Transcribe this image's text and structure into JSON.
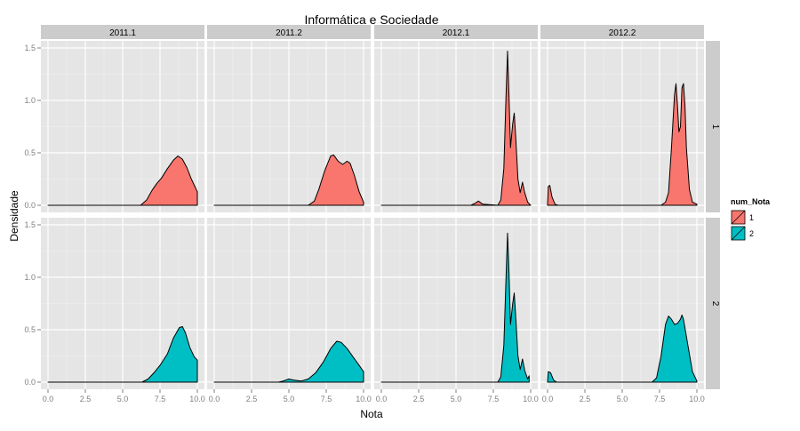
{
  "chart_data": {
    "type": "area",
    "title": "Informática e Sociedade",
    "xlabel": "Nota",
    "ylabel": "Densidade",
    "xlim": [
      0,
      10
    ],
    "ylim": [
      0,
      1.5
    ],
    "x_ticks": [
      "0.0",
      "2.5",
      "5.0",
      "7.5",
      "10.0"
    ],
    "y_ticks": [
      "0.0",
      "0.5",
      "1.0",
      "1.5"
    ],
    "column_facets": [
      "2011.1",
      "2011.2",
      "2012.1",
      "2012.2"
    ],
    "row_facets": [
      "1",
      "2"
    ],
    "legend": {
      "title": "num_Nota",
      "placement": "right",
      "entries": [
        {
          "label": "1",
          "color": "#F8766D"
        },
        {
          "label": "2",
          "color": "#00BFC4"
        }
      ]
    },
    "grid": true,
    "panels": [
      {
        "column": "2011.1",
        "row": "1",
        "xmax": 10.0,
        "points": [
          [
            0,
            0
          ],
          [
            6.2,
            0
          ],
          [
            6.6,
            0.05
          ],
          [
            7.0,
            0.15
          ],
          [
            7.3,
            0.21
          ],
          [
            7.6,
            0.26
          ],
          [
            8.0,
            0.35
          ],
          [
            8.4,
            0.43
          ],
          [
            8.7,
            0.47
          ],
          [
            9.0,
            0.44
          ],
          [
            9.3,
            0.36
          ],
          [
            9.6,
            0.25
          ],
          [
            10.0,
            0.13
          ],
          [
            10.0,
            0
          ]
        ]
      },
      {
        "column": "2011.2",
        "row": "1",
        "xmax": 10.0,
        "points": [
          [
            0,
            0
          ],
          [
            6.3,
            0
          ],
          [
            6.7,
            0.04
          ],
          [
            7.0,
            0.15
          ],
          [
            7.4,
            0.33
          ],
          [
            7.8,
            0.47
          ],
          [
            8.0,
            0.48
          ],
          [
            8.3,
            0.42
          ],
          [
            8.6,
            0.39
          ],
          [
            8.9,
            0.42
          ],
          [
            9.1,
            0.4
          ],
          [
            9.4,
            0.28
          ],
          [
            9.7,
            0.13
          ],
          [
            10.0,
            0.03
          ],
          [
            10.0,
            0
          ]
        ]
      },
      {
        "column": "2012.1",
        "row": "1",
        "xmax": 10.0,
        "points": [
          [
            0,
            0
          ],
          [
            6.0,
            0
          ],
          [
            6.3,
            0.02
          ],
          [
            6.5,
            0.04
          ],
          [
            6.8,
            0.01
          ],
          [
            7.8,
            0
          ],
          [
            8.0,
            0.05
          ],
          [
            8.2,
            0.35
          ],
          [
            8.35,
            1.05
          ],
          [
            8.45,
            1.47
          ],
          [
            8.55,
            1.05
          ],
          [
            8.65,
            0.55
          ],
          [
            8.8,
            0.78
          ],
          [
            8.9,
            0.88
          ],
          [
            9.0,
            0.65
          ],
          [
            9.15,
            0.25
          ],
          [
            9.3,
            0.12
          ],
          [
            9.45,
            0.22
          ],
          [
            9.6,
            0.12
          ],
          [
            9.8,
            0.03
          ],
          [
            10.0,
            0
          ],
          [
            10.0,
            0
          ]
        ]
      },
      {
        "column": "2012.2",
        "row": "1",
        "xmax": 10.0,
        "points": [
          [
            0,
            0
          ],
          [
            0.05,
            0.18
          ],
          [
            0.15,
            0.19
          ],
          [
            0.3,
            0.08
          ],
          [
            0.5,
            0.01
          ],
          [
            0.7,
            0
          ],
          [
            7.6,
            0
          ],
          [
            7.9,
            0.03
          ],
          [
            8.1,
            0.12
          ],
          [
            8.3,
            0.55
          ],
          [
            8.5,
            1.05
          ],
          [
            8.6,
            1.16
          ],
          [
            8.7,
            0.95
          ],
          [
            8.8,
            0.7
          ],
          [
            8.9,
            0.75
          ],
          [
            9.0,
            1.12
          ],
          [
            9.1,
            1.16
          ],
          [
            9.2,
            0.95
          ],
          [
            9.3,
            0.55
          ],
          [
            9.5,
            0.15
          ],
          [
            9.7,
            0.03
          ],
          [
            10.0,
            0.01
          ],
          [
            10.0,
            0
          ]
        ]
      },
      {
        "column": "2011.1",
        "row": "2",
        "xmax": 10.0,
        "points": [
          [
            0,
            0
          ],
          [
            6.3,
            0
          ],
          [
            6.7,
            0.03
          ],
          [
            7.1,
            0.09
          ],
          [
            7.5,
            0.16
          ],
          [
            8.0,
            0.27
          ],
          [
            8.4,
            0.42
          ],
          [
            8.8,
            0.52
          ],
          [
            9.0,
            0.53
          ],
          [
            9.2,
            0.47
          ],
          [
            9.5,
            0.33
          ],
          [
            9.8,
            0.24
          ],
          [
            10.0,
            0.21
          ],
          [
            10.0,
            0
          ]
        ]
      },
      {
        "column": "2011.2",
        "row": "2",
        "xmax": 10.0,
        "points": [
          [
            0,
            0
          ],
          [
            4.3,
            0
          ],
          [
            4.6,
            0.01
          ],
          [
            5.0,
            0.03
          ],
          [
            5.3,
            0.02
          ],
          [
            5.8,
            0.01
          ],
          [
            6.3,
            0.03
          ],
          [
            6.8,
            0.09
          ],
          [
            7.3,
            0.19
          ],
          [
            7.8,
            0.32
          ],
          [
            8.2,
            0.39
          ],
          [
            8.5,
            0.38
          ],
          [
            8.9,
            0.32
          ],
          [
            9.3,
            0.24
          ],
          [
            9.7,
            0.16
          ],
          [
            10.0,
            0.1
          ],
          [
            10.0,
            0
          ]
        ]
      },
      {
        "column": "2012.1",
        "row": "2",
        "xmax": 9.9,
        "points": [
          [
            0,
            0
          ],
          [
            7.8,
            0
          ],
          [
            8.0,
            0.05
          ],
          [
            8.2,
            0.35
          ],
          [
            8.35,
            1.0
          ],
          [
            8.45,
            1.42
          ],
          [
            8.55,
            1.05
          ],
          [
            8.65,
            0.55
          ],
          [
            8.8,
            0.75
          ],
          [
            8.9,
            0.85
          ],
          [
            9.0,
            0.62
          ],
          [
            9.15,
            0.25
          ],
          [
            9.3,
            0.12
          ],
          [
            9.45,
            0.22
          ],
          [
            9.6,
            0.11
          ],
          [
            9.8,
            0.03
          ],
          [
            9.9,
            0.06
          ],
          [
            9.9,
            0
          ]
        ]
      },
      {
        "column": "2012.2",
        "row": "2",
        "xmax": 10.0,
        "points": [
          [
            0,
            0
          ],
          [
            0.05,
            0.1
          ],
          [
            0.2,
            0.09
          ],
          [
            0.4,
            0.02
          ],
          [
            0.6,
            0
          ],
          [
            7.0,
            0
          ],
          [
            7.3,
            0.04
          ],
          [
            7.6,
            0.25
          ],
          [
            7.9,
            0.55
          ],
          [
            8.1,
            0.63
          ],
          [
            8.3,
            0.6
          ],
          [
            8.5,
            0.55
          ],
          [
            8.7,
            0.56
          ],
          [
            8.9,
            0.6
          ],
          [
            9.0,
            0.64
          ],
          [
            9.1,
            0.6
          ],
          [
            9.4,
            0.35
          ],
          [
            9.7,
            0.1
          ],
          [
            10.0,
            0.01
          ],
          [
            10.0,
            0
          ]
        ]
      }
    ]
  }
}
